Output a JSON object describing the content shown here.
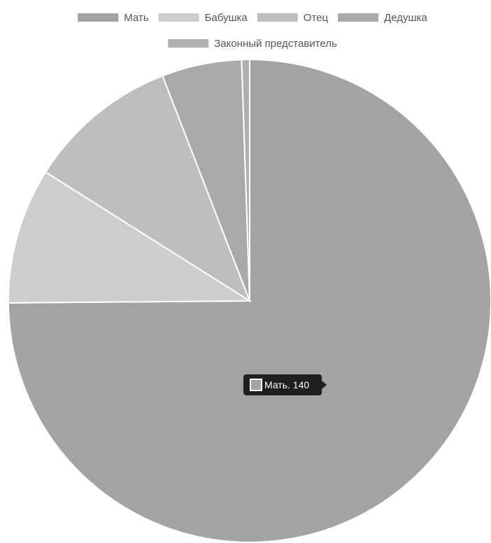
{
  "chart_data": {
    "type": "pie",
    "title": "",
    "categories": [
      "Мать",
      "Бабушка",
      "Отец",
      "Дедушка",
      "Законный представитель"
    ],
    "values": [
      140,
      17,
      19,
      10,
      1
    ],
    "colors": [
      "#a3a3a3",
      "#cdcdcd",
      "#bebebe",
      "#a9a9a9",
      "#b0b0b0"
    ],
    "legend_position": "top",
    "tooltip": {
      "category": "Мать",
      "value": 140,
      "text": "Мать. 140"
    }
  }
}
